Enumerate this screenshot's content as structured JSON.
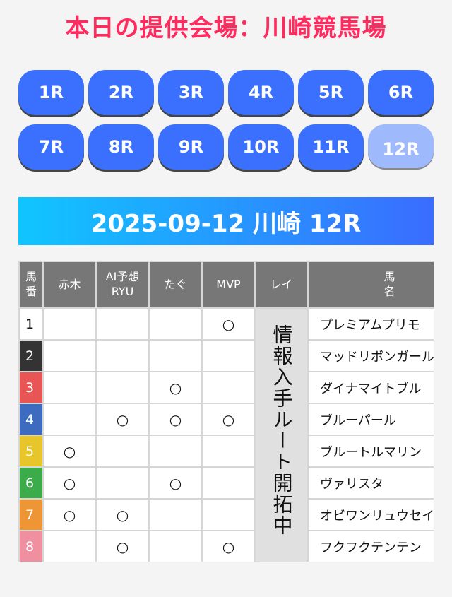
{
  "header": {
    "title": "本日の提供会場：川崎競馬場"
  },
  "races": [
    {
      "label": "1R"
    },
    {
      "label": "2R"
    },
    {
      "label": "3R"
    },
    {
      "label": "4R"
    },
    {
      "label": "5R"
    },
    {
      "label": "6R"
    },
    {
      "label": "7R"
    },
    {
      "label": "8R"
    },
    {
      "label": "9R"
    },
    {
      "label": "10R"
    },
    {
      "label": "11R"
    },
    {
      "label": "12R",
      "selected": true
    }
  ],
  "banner": {
    "text": "2025-09-12 川崎 12R"
  },
  "colors": {
    "title": "#ff2b5e",
    "button": "#3b6ffd",
    "button_selected": "#9fb9fd"
  },
  "table": {
    "headers": [
      "馬番",
      "赤木",
      "AI予想RYU",
      "たぐ",
      "MVP",
      "レイ",
      "馬名"
    ],
    "header_lines": {
      "num1": "馬",
      "num2": "番",
      "ai1": "AI予想",
      "ai2": "RYU",
      "name1": "馬",
      "name2": "名"
    },
    "rei_note": "情報入手ルート開拓中",
    "mark": "○",
    "rows": [
      {
        "num": "1",
        "color": "#ffffff",
        "text_color": "#111111",
        "akagi": "",
        "ai": "",
        "tagu": "",
        "mvp": "○",
        "name": "プレミアムプリモ"
      },
      {
        "num": "2",
        "color": "#333333",
        "text_color": "#ffffff",
        "akagi": "",
        "ai": "",
        "tagu": "",
        "mvp": "",
        "name": "マッドリボンガール"
      },
      {
        "num": "3",
        "color": "#e85555",
        "text_color": "#ffffff",
        "akagi": "",
        "ai": "",
        "tagu": "○",
        "mvp": "",
        "name": "ダイナマイトブル"
      },
      {
        "num": "4",
        "color": "#3d6bbf",
        "text_color": "#ffffff",
        "akagi": "",
        "ai": "○",
        "tagu": "○",
        "mvp": "○",
        "name": "ブルーパール"
      },
      {
        "num": "5",
        "color": "#e8c52a",
        "text_color": "#ffffff",
        "akagi": "○",
        "ai": "",
        "tagu": "",
        "mvp": "",
        "name": "ブルートルマリン"
      },
      {
        "num": "6",
        "color": "#3cab4a",
        "text_color": "#ffffff",
        "akagi": "○",
        "ai": "",
        "tagu": "○",
        "mvp": "",
        "name": "ヴァリスタ"
      },
      {
        "num": "7",
        "color": "#ee9536",
        "text_color": "#ffffff",
        "akagi": "○",
        "ai": "○",
        "tagu": "",
        "mvp": "",
        "name": "オビワンリュウセイ"
      },
      {
        "num": "8",
        "color": "#f08fa0",
        "text_color": "#ffffff",
        "akagi": "",
        "ai": "○",
        "tagu": "",
        "mvp": "○",
        "name": "フクフクテンテン"
      }
    ]
  }
}
